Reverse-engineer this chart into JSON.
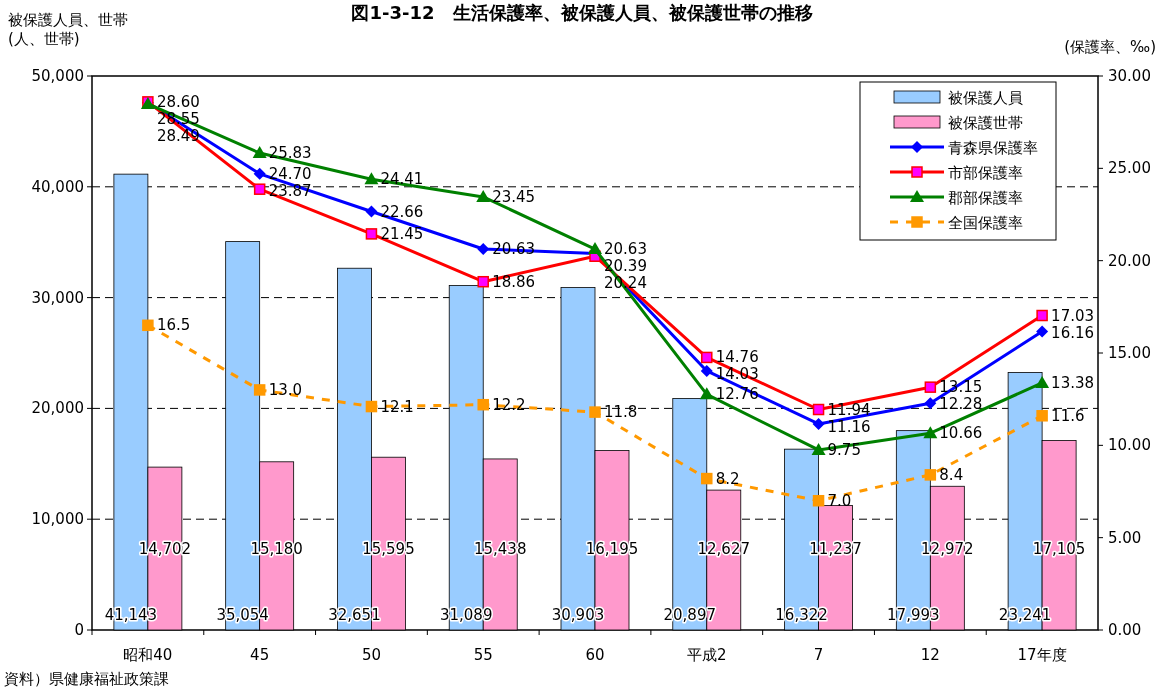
{
  "chart_data": {
    "type": "bar",
    "title": "図1-3-12　生活保護率、被保護人員、被保護世帯の推移",
    "ylabel": "被保護人員、世帯\n(人、世帯)",
    "y2label": "(保護率、‰)",
    "annotations": [
      "資料）県健康福祉政策課"
    ],
    "categories": [
      "昭和40",
      "45",
      "50",
      "55",
      "60",
      "平成2",
      "7",
      "12",
      "17年度"
    ],
    "series": [
      {
        "name": "被保護人員",
        "color": "#99ccff",
        "values": [
          41143,
          35054,
          32651,
          31089,
          30903,
          20897,
          16322,
          17993,
          23241
        ],
        "value_labels": [
          "41,143",
          "35,054",
          "32,651",
          "31,089",
          "30,903",
          "20,897",
          "16,322",
          "17,993",
          "23,241"
        ]
      },
      {
        "name": "被保護世帯",
        "color": "#ff99cc",
        "values": [
          14702,
          15180,
          15595,
          15438,
          16195,
          12627,
          11237,
          12972,
          17105
        ],
        "value_labels": [
          "14,702",
          "15,180",
          "15,595",
          "15,438",
          "16,195",
          "12,627",
          "11,237",
          "12,972",
          "17,105"
        ]
      },
      {
        "name": "青森県保護率",
        "type": "line",
        "axis": "y2",
        "color": "#0000ff",
        "marker": "diamond",
        "line_style": "solid",
        "values": [
          28.55,
          24.7,
          22.66,
          20.63,
          20.39,
          14.03,
          11.16,
          12.28,
          16.16
        ],
        "value_labels": [
          "28.55",
          "24.70",
          "22.66",
          "20.63",
          "20.39",
          "14.03",
          "11.16",
          "12.28",
          "16.16"
        ]
      },
      {
        "name": "市部保護率",
        "type": "line",
        "axis": "y2",
        "color": "#ff0000",
        "marker": "square",
        "line_style": "solid",
        "values": [
          28.6,
          23.87,
          21.45,
          18.86,
          20.24,
          14.76,
          11.94,
          13.15,
          17.03
        ],
        "value_labels": [
          "28.60",
          "23.87",
          "21.45",
          "18.86",
          "20.24",
          "14.76",
          "11.94",
          "13.15",
          "17.03"
        ]
      },
      {
        "name": "郡部保護率",
        "type": "line",
        "axis": "y2",
        "color": "#008000",
        "marker": "triangle",
        "line_style": "solid",
        "values": [
          28.49,
          25.83,
          24.41,
          23.45,
          20.63,
          12.76,
          9.75,
          10.66,
          13.38
        ],
        "value_labels": [
          "28.49",
          "25.83",
          "24.41",
          "23.45",
          "20.63",
          "12.76",
          "9.75",
          "10.66",
          "13.38"
        ]
      },
      {
        "name": "全国保護率",
        "type": "line",
        "axis": "y2",
        "color": "#ff9900",
        "marker": "square",
        "line_style": "dashed",
        "values": [
          16.5,
          13.0,
          12.1,
          12.2,
          11.8,
          8.2,
          7.0,
          8.4,
          11.6
        ],
        "value_labels": [
          "16.5",
          "13.0",
          "12.1",
          "12.2",
          "11.8",
          "8.2",
          "7.0",
          "8.4",
          "11.6"
        ]
      }
    ],
    "ylim": [
      0,
      50000
    ],
    "yticks": [
      {
        "value": 0,
        "label": "0"
      },
      {
        "value": 10000,
        "label": "10,000"
      },
      {
        "value": 20000,
        "label": "20,000"
      },
      {
        "value": 30000,
        "label": "30,000"
      },
      {
        "value": 40000,
        "label": "40,000"
      },
      {
        "value": 50000,
        "label": "50,000"
      }
    ],
    "y2lim": [
      0,
      30
    ],
    "y2ticks": [
      {
        "value": 0,
        "label": "0.00"
      },
      {
        "value": 5,
        "label": "5.00"
      },
      {
        "value": 10,
        "label": "10.00"
      },
      {
        "value": 15,
        "label": "15.00"
      },
      {
        "value": 20,
        "label": "20.00"
      },
      {
        "value": 25,
        "label": "25.00"
      },
      {
        "value": 30,
        "label": "30.00"
      }
    ],
    "grid": "y",
    "legend": "top right"
  }
}
